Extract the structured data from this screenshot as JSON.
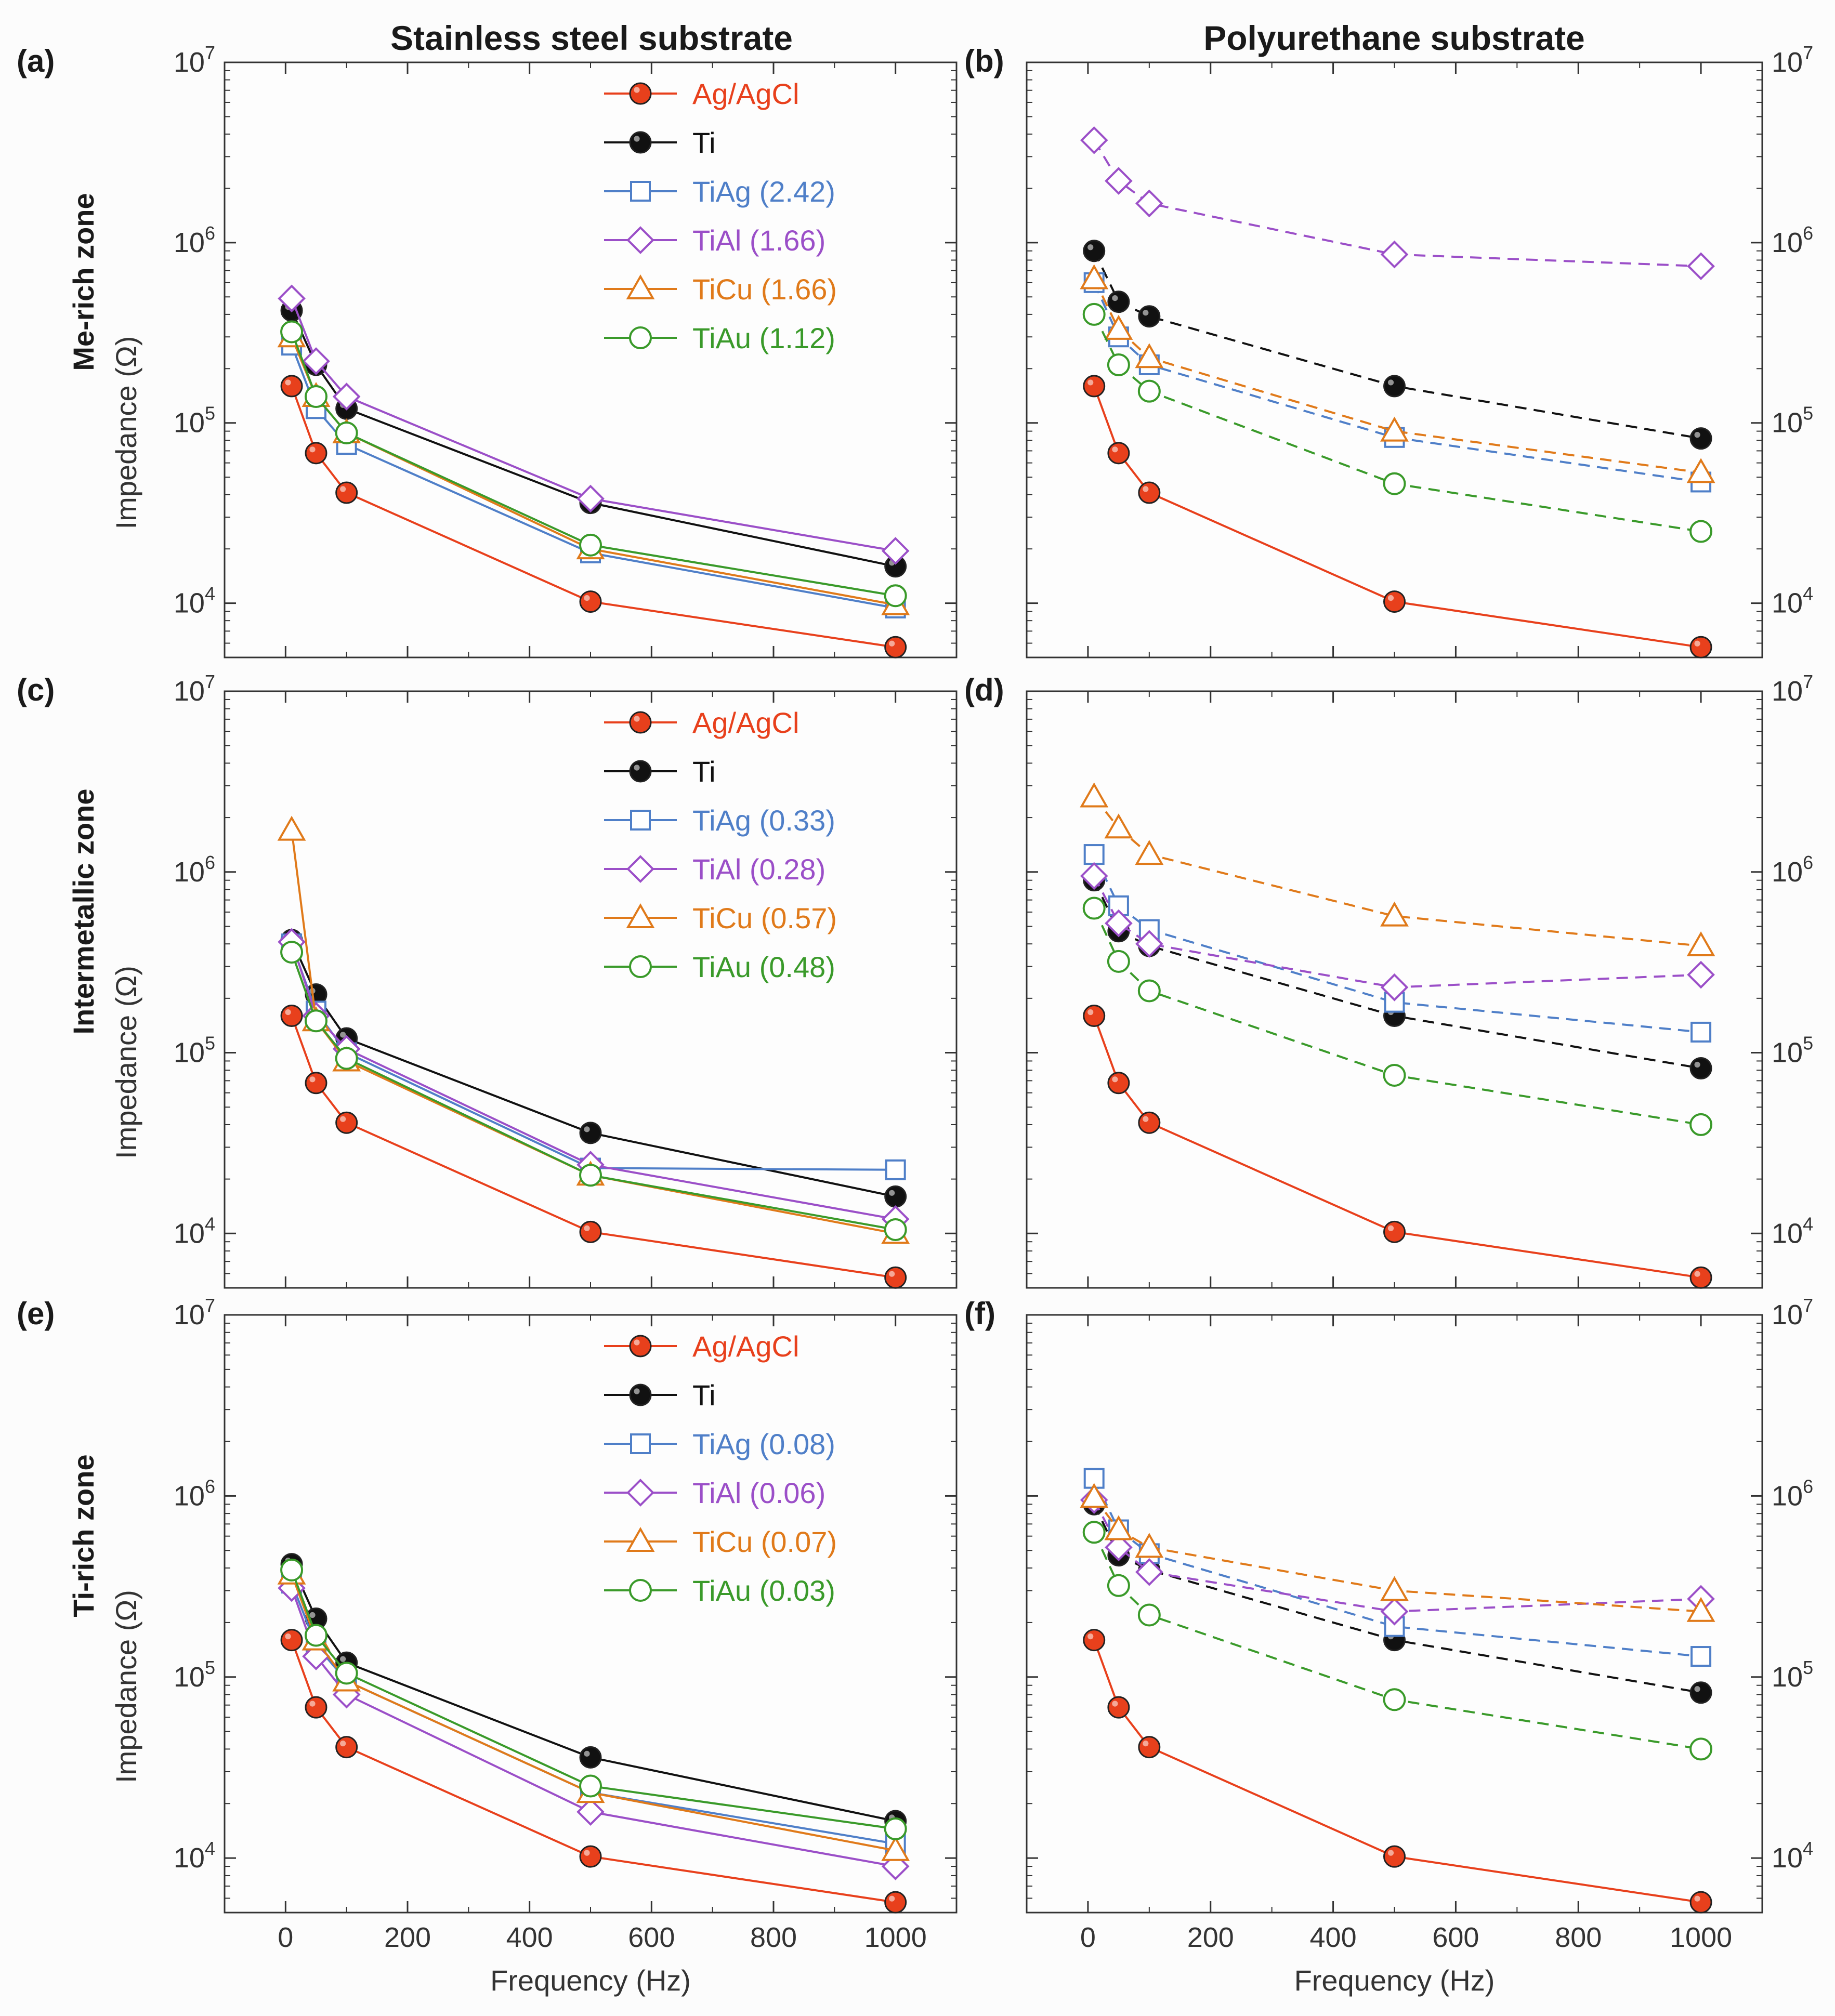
{
  "chart_data": {
    "type": "line",
    "column_titles": [
      "Stainless steel substrate",
      "Polyurethane substrate"
    ],
    "row_labels": [
      "Me-rich zone",
      "Intermetallic zone",
      "Ti-rich zone"
    ],
    "xlabel": "Frequency (Hz)",
    "ylabel": "Impedance (Ω)",
    "xlim": [
      -100,
      1100
    ],
    "xticks": [
      0,
      200,
      400,
      600,
      800,
      1000
    ],
    "ylim": [
      5000,
      10000000
    ],
    "yscale": "log",
    "ytick_base": "10",
    "ytick_exponents": [
      "4",
      "5",
      "6",
      "7"
    ],
    "x": [
      10,
      50,
      100,
      500,
      1000
    ],
    "series_styles": {
      "Ag/AgCl": {
        "color": "#e8401c",
        "marker": "filled-ball"
      },
      "Ti": {
        "color": "#111111",
        "marker": "filled-ball"
      },
      "TiAg": {
        "color": "#4f7fc8",
        "marker": "square"
      },
      "TiAl": {
        "color": "#9b4fc8",
        "marker": "diamond"
      },
      "TiCu": {
        "color": "#e07a1a",
        "marker": "triangle"
      },
      "TiAu": {
        "color": "#3a9a2a",
        "marker": "circle"
      }
    },
    "panels": [
      {
        "label": "(a)",
        "substrate": "stainless",
        "zone": "Me-rich zone",
        "line": "solid",
        "legend": [
          "Ag/AgCl",
          "Ti",
          "TiAg  (2.42)",
          "TiAl   (1.66)",
          "TiCu  (1.66)",
          "TiAu  (1.12)"
        ],
        "series": [
          {
            "name": "Ag/AgCl",
            "values": [
              160000,
              68000,
              41000,
              10200,
              5700
            ]
          },
          {
            "name": "Ti",
            "values": [
              420000,
              210000,
              120000,
              36000,
              16000
            ]
          },
          {
            "name": "TiAg",
            "values": [
              270000,
              120000,
              76000,
              19000,
              9400
            ]
          },
          {
            "name": "TiAl",
            "values": [
              490000,
              220000,
              140000,
              38000,
              19500
            ]
          },
          {
            "name": "TiCu",
            "values": [
              300000,
              140000,
              88000,
              20000,
              9800
            ]
          },
          {
            "name": "TiAu",
            "values": [
              320000,
              140000,
              88000,
              21000,
              11000
            ]
          }
        ]
      },
      {
        "label": "(b)",
        "substrate": "polyurethane",
        "zone": "Me-rich zone",
        "line": "dashed",
        "series": [
          {
            "name": "Ag/AgCl",
            "values": [
              160000,
              68000,
              41000,
              10200,
              5700
            ]
          },
          {
            "name": "Ti",
            "values": [
              900000,
              470000,
              390000,
              160000,
              82000
            ]
          },
          {
            "name": "TiAg",
            "values": [
              600000,
              300000,
              210000,
              83000,
              47000
            ]
          },
          {
            "name": "TiAl",
            "values": [
              3700000,
              2200000,
              1650000,
              860000,
              740000
            ]
          },
          {
            "name": "TiCu",
            "values": [
              630000,
              330000,
              230000,
              90000,
              53000
            ]
          },
          {
            "name": "TiAu",
            "values": [
              400000,
              210000,
              150000,
              46000,
              25000
            ]
          }
        ]
      },
      {
        "label": "(c)",
        "substrate": "stainless",
        "zone": "Intermetallic zone",
        "line": "solid",
        "legend": [
          "Ag/AgCl",
          "Ti",
          "TiAg  (0.33)",
          "TiAl   (0.28)",
          "TiCu  (0.57)",
          "TiAu  (0.48)"
        ],
        "series": [
          {
            "name": "Ag/AgCl",
            "values": [
              160000,
              68000,
              41000,
              10200,
              5700
            ]
          },
          {
            "name": "Ti",
            "values": [
              420000,
              210000,
              120000,
              36000,
              16000
            ]
          },
          {
            "name": "TiAg",
            "values": [
              400000,
              170000,
              100000,
              23000,
              22500
            ]
          },
          {
            "name": "TiAl",
            "values": [
              410000,
              160000,
              105000,
              24000,
              12000
            ]
          },
          {
            "name": "TiCu",
            "values": [
              1700000,
              150000,
              90000,
              21000,
              10000
            ]
          },
          {
            "name": "TiAu",
            "values": [
              360000,
              150000,
              93000,
              21000,
              10500
            ]
          }
        ]
      },
      {
        "label": "(d)",
        "substrate": "polyurethane",
        "zone": "Intermetallic zone",
        "line": "dashed",
        "series": [
          {
            "name": "Ag/AgCl",
            "values": [
              160000,
              68000,
              41000,
              10200,
              5700
            ]
          },
          {
            "name": "Ti",
            "values": [
              900000,
              470000,
              390000,
              160000,
              82000
            ]
          },
          {
            "name": "TiAg",
            "values": [
              1250000,
              650000,
              480000,
              190000,
              130000
            ]
          },
          {
            "name": "TiAl",
            "values": [
              950000,
              520000,
              400000,
              230000,
              270000
            ]
          },
          {
            "name": "TiCu",
            "values": [
              2600000,
              1750000,
              1250000,
              570000,
              390000
            ]
          },
          {
            "name": "TiAu",
            "values": [
              630000,
              320000,
              220000,
              75000,
              40000
            ]
          }
        ]
      },
      {
        "label": "(e)",
        "substrate": "stainless",
        "zone": "Ti-rich zone",
        "line": "solid",
        "legend": [
          "Ag/AgCl",
          "Ti",
          "TiAg  (0.08)",
          "TiAl   (0.06)",
          "TiCu  (0.07)",
          "TiAu  (0.03)"
        ],
        "series": [
          {
            "name": "Ag/AgCl",
            "values": [
              160000,
              68000,
              41000,
              10200,
              5700
            ]
          },
          {
            "name": "Ti",
            "values": [
              420000,
              210000,
              120000,
              36000,
              16000
            ]
          },
          {
            "name": "TiAg",
            "values": [
              330000,
              150000,
              95000,
              23000,
              12000
            ]
          },
          {
            "name": "TiAl",
            "values": [
              310000,
              130000,
              80000,
              18000,
              9000
            ]
          },
          {
            "name": "TiCu",
            "values": [
              370000,
              160000,
              95000,
              23000,
              11000
            ]
          },
          {
            "name": "TiAu",
            "values": [
              390000,
              170000,
              105000,
              25000,
              14500
            ]
          }
        ]
      },
      {
        "label": "(f)",
        "substrate": "polyurethane",
        "zone": "Ti-rich zone",
        "line": "dashed",
        "series": [
          {
            "name": "Ag/AgCl",
            "values": [
              160000,
              68000,
              41000,
              10200,
              5700
            ]
          },
          {
            "name": "Ti",
            "values": [
              900000,
              470000,
              390000,
              160000,
              82000
            ]
          },
          {
            "name": "TiAg",
            "values": [
              1250000,
              650000,
              480000,
              190000,
              130000
            ]
          },
          {
            "name": "TiAl",
            "values": [
              950000,
              520000,
              380000,
              230000,
              270000
            ]
          },
          {
            "name": "TiCu",
            "values": [
              980000,
              650000,
              520000,
              300000,
              230000
            ]
          },
          {
            "name": "TiAu",
            "values": [
              630000,
              320000,
              220000,
              75000,
              40000
            ]
          }
        ]
      }
    ]
  }
}
